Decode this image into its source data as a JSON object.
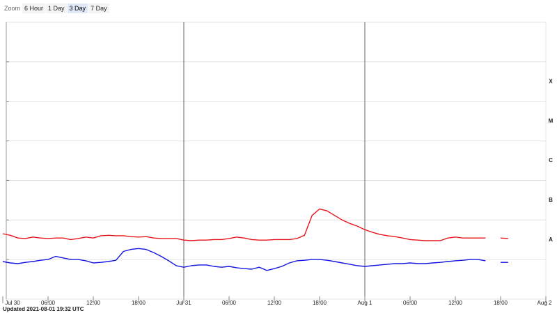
{
  "zoom": {
    "label": "Zoom",
    "buttons": [
      "6 Hour",
      "1 Day",
      "3 Day",
      "7 Day"
    ],
    "selected": 2
  },
  "chart_data": {
    "type": "line",
    "log_y": true,
    "grid": true,
    "x": [
      0,
      1,
      2,
      3,
      4,
      5,
      6,
      7,
      8,
      9,
      10,
      11,
      12,
      13,
      14,
      15,
      16,
      17,
      18,
      19,
      20,
      21,
      22,
      23,
      24,
      25,
      26,
      27,
      28,
      29,
      30,
      31,
      32,
      33,
      34,
      35,
      36,
      37,
      38,
      39,
      40,
      41,
      42,
      43,
      44,
      45,
      46,
      47,
      48,
      49,
      50,
      51,
      52,
      53,
      54,
      55,
      56,
      57,
      58,
      59,
      60,
      61,
      62,
      63,
      64,
      65,
      66,
      67
    ],
    "xlim": [
      0,
      72
    ],
    "xticks": [
      {
        "value": 0,
        "label": "Jul 30"
      },
      {
        "value": 6,
        "label": "06:00"
      },
      {
        "value": 12,
        "label": "12:00"
      },
      {
        "value": 18,
        "label": "18:00"
      },
      {
        "value": 24,
        "label": "Jul 31"
      },
      {
        "value": 30,
        "label": "06:00"
      },
      {
        "value": 36,
        "label": "12:00"
      },
      {
        "value": 42,
        "label": "18:00"
      },
      {
        "value": 48,
        "label": "Aug 1"
      },
      {
        "value": 54,
        "label": "06:00"
      },
      {
        "value": 60,
        "label": "12:00"
      },
      {
        "value": 66,
        "label": "18:00"
      },
      {
        "value": 72,
        "label": "Aug 2"
      }
    ],
    "ylim": [
      1e-09,
      0.01
    ],
    "yticks": [
      1e-08,
      1e-07,
      1e-06,
      1e-05,
      0.0001,
      0.001
    ],
    "flare_classes": [
      {
        "value": 1e-08,
        "label": "A"
      },
      {
        "value": 1e-07,
        "label": "B"
      },
      {
        "value": 1e-06,
        "label": "C"
      },
      {
        "value": 1e-05,
        "label": "M"
      },
      {
        "value": 0.0001,
        "label": "X"
      }
    ],
    "series": [
      {
        "color": "#e8141c",
        "values": [
          4.5e-08,
          4.1e-08,
          3.5e-08,
          3.4e-08,
          3.7e-08,
          3.5e-08,
          3.4e-08,
          3.5e-08,
          3.5e-08,
          3.2e-08,
          3.4e-08,
          3.7e-08,
          3.5e-08,
          4e-08,
          4.1e-08,
          4e-08,
          4e-08,
          3.8e-08,
          3.7e-08,
          3.8e-08,
          3.5e-08,
          3.4e-08,
          3.4e-08,
          3.4e-08,
          3.1e-08,
          3e-08,
          3.1e-08,
          3.1e-08,
          3.2e-08,
          3.2e-08,
          3.4e-08,
          3.7e-08,
          3.5e-08,
          3.2e-08,
          3.1e-08,
          3.1e-08,
          3.2e-08,
          3.2e-08,
          3.2e-08,
          3.4e-08,
          4.1e-08,
          1.3e-07,
          1.9e-07,
          1.7e-07,
          1.3e-07,
          1e-07,
          8.2e-08,
          7e-08,
          5.7e-08,
          4.9e-08,
          4.3e-08,
          4e-08,
          3.8e-08,
          3.5e-08,
          3.2e-08,
          3.1e-08,
          3e-08,
          3e-08,
          3e-08,
          3.5e-08,
          3.7e-08,
          3.5e-08,
          3.5e-08,
          3.5e-08,
          3.5e-08,
          null,
          3.5e-08,
          3.4e-08
        ]
      },
      {
        "color": "#1414e0",
        "values": [
          8.9e-09,
          8.2e-09,
          7.9e-09,
          8.5e-09,
          8.9e-09,
          9.6e-09,
          1e-08,
          1.2e-08,
          1.1e-08,
          1e-08,
          1e-08,
          9.3e-09,
          8.2e-09,
          8.5e-09,
          8.9e-09,
          9.6e-09,
          1.6e-08,
          1.8e-08,
          1.9e-08,
          1.8e-08,
          1.5e-08,
          1.2e-08,
          9.3e-09,
          7e-09,
          6.4e-09,
          7e-09,
          7.3e-09,
          7.3e-09,
          6.7e-09,
          6.4e-09,
          6.7e-09,
          6.2e-09,
          5.9e-09,
          5.7e-09,
          6.4e-09,
          5.3e-09,
          5.9e-09,
          6.7e-09,
          8.2e-09,
          9.3e-09,
          9.6e-09,
          1e-08,
          1e-08,
          9.6e-09,
          8.9e-09,
          8.2e-09,
          7.6e-09,
          7e-09,
          6.7e-09,
          7e-09,
          7.3e-09,
          7.6e-09,
          7.9e-09,
          7.9e-09,
          8.2e-09,
          7.9e-09,
          7.9e-09,
          8.2e-09,
          8.5e-09,
          8.9e-09,
          9.3e-09,
          9.6e-09,
          1e-08,
          1e-08,
          9.3e-09,
          null,
          8.5e-09,
          8.5e-09
        ]
      }
    ]
  },
  "footer": "Updated 2021-08-01 19:32 UTC"
}
